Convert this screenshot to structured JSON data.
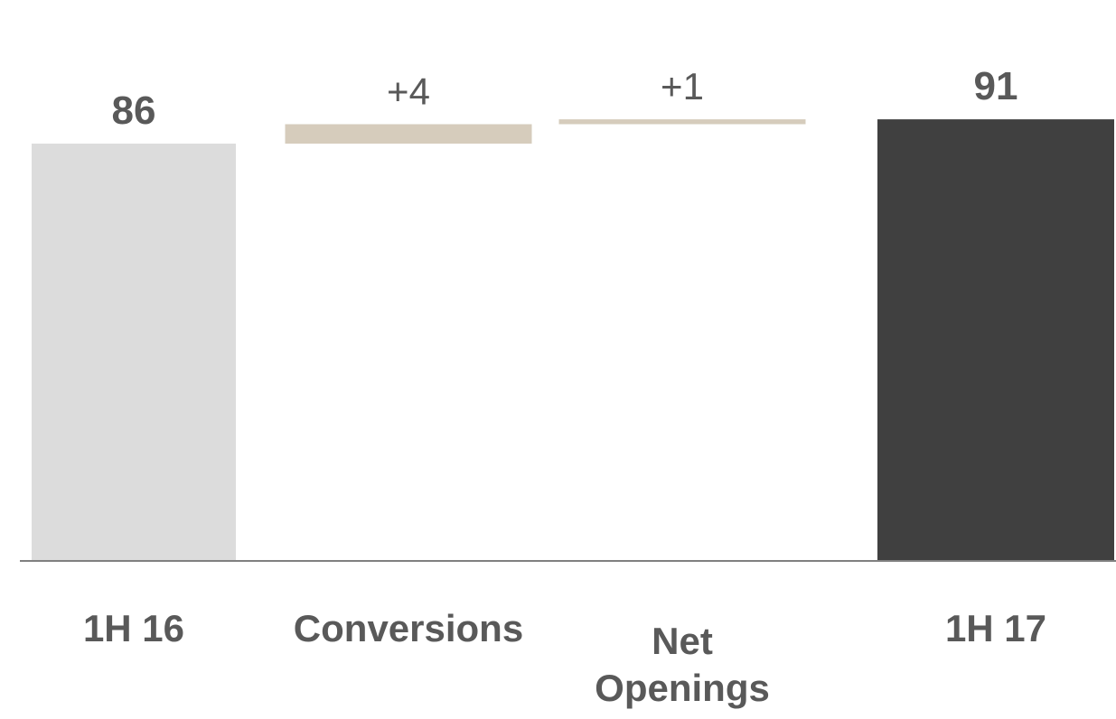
{
  "chart_data": {
    "type": "bar",
    "subtype": "waterfall",
    "title": "",
    "xlabel": "",
    "ylabel": "",
    "grid": false,
    "legend": "none",
    "categories": [
      "1H 16",
      "Conversions",
      "Net Openings",
      "1H 17"
    ],
    "category_label_lines": [
      [
        "1H 16"
      ],
      [
        "Conversions"
      ],
      [
        "Net",
        "Openings"
      ],
      [
        "1H 17"
      ]
    ],
    "values": [
      86,
      4,
      1,
      91
    ],
    "kinds": [
      "total",
      "delta",
      "delta",
      "total"
    ],
    "value_labels": [
      "86",
      "+4",
      "+1",
      "91"
    ],
    "colors": {
      "start_total": "#dcdcdc",
      "delta": "#d6ccbc",
      "end_total": "#404040",
      "label": "#595959",
      "baseline": "#808080"
    }
  }
}
